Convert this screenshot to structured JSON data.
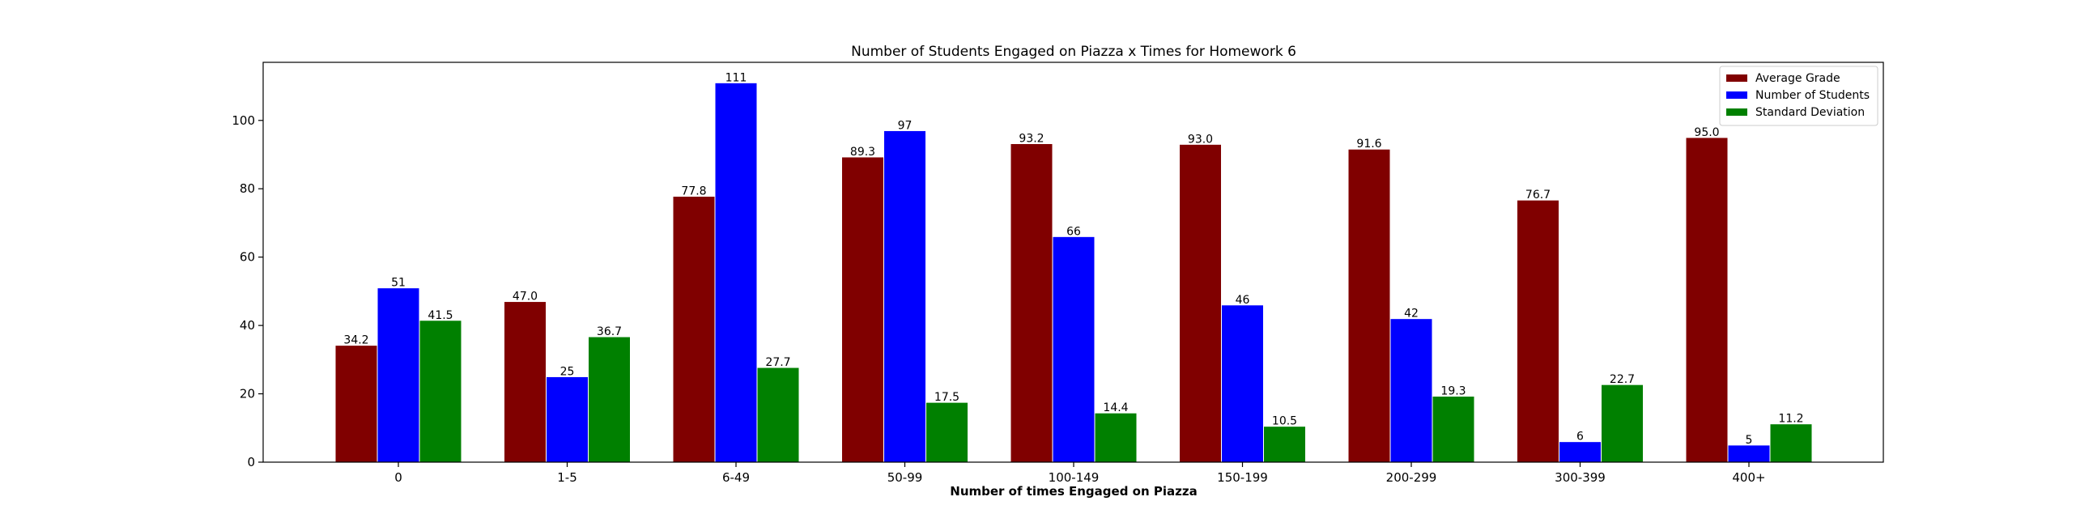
{
  "chart_data": {
    "type": "bar",
    "title": "Number of Students Engaged on Piazza x Times for Homework 6",
    "xlabel": "Number of times Engaged on Piazza",
    "ylabel": "",
    "ylim": [
      0,
      117
    ],
    "yticks": [
      0,
      20,
      40,
      60,
      80,
      100
    ],
    "grid": false,
    "legend_position": "top-right",
    "categories": [
      "0",
      "1-5",
      "6-49",
      "50-99",
      "100-149",
      "150-199",
      "200-299",
      "300-399",
      "400+"
    ],
    "series": [
      {
        "name": "Average Grade",
        "color": "#800000",
        "values": [
          34.2,
          47.0,
          77.8,
          89.3,
          93.2,
          93.0,
          91.6,
          76.7,
          95.0
        ],
        "labels": [
          "34.2",
          "47.0",
          "77.8",
          "89.3",
          "93.2",
          "93.0",
          "91.6",
          "76.7",
          "95.0"
        ]
      },
      {
        "name": "Number of Students",
        "color": "#0000ff",
        "values": [
          51,
          25,
          111,
          97,
          66,
          46,
          42,
          6,
          5
        ],
        "labels": [
          "51",
          "25",
          "111",
          "97",
          "66",
          "46",
          "42",
          "6",
          "5"
        ]
      },
      {
        "name": "Standard Deviation",
        "color": "#008000",
        "values": [
          41.5,
          36.7,
          27.7,
          17.5,
          14.4,
          10.5,
          19.3,
          22.7,
          11.2
        ],
        "labels": [
          "41.5",
          "36.7",
          "27.7",
          "17.5",
          "14.4",
          "10.5",
          "19.3",
          "22.7",
          "11.2"
        ]
      }
    ]
  }
}
